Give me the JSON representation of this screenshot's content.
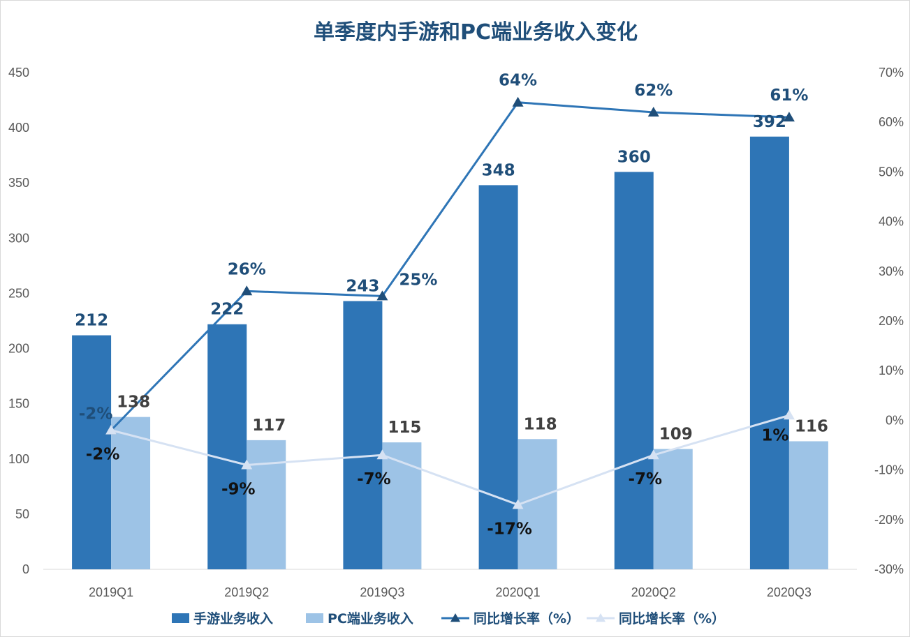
{
  "chart_data": {
    "type": "bar",
    "title": "单季度内手游和PC端业务收入变化",
    "categories": [
      "2019Q1",
      "2019Q2",
      "2019Q3",
      "2020Q1",
      "2020Q2",
      "2020Q3"
    ],
    "y_left": {
      "min": 0,
      "max": 450,
      "step": 50
    },
    "y_right": {
      "min": -30,
      "max": 70,
      "step": 10,
      "unit": "%"
    },
    "bar_series": [
      {
        "name": "手游业务收入",
        "color": "#2e75b6",
        "values": [
          212,
          222,
          243,
          348,
          360,
          392
        ]
      },
      {
        "name": "PC端业务收入",
        "color": "#9dc3e6",
        "values": [
          138,
          117,
          115,
          118,
          109,
          116
        ]
      }
    ],
    "line_series": [
      {
        "name": "同比增长率（%）",
        "color": "#2e75b6",
        "values": [
          -2,
          26,
          25,
          64,
          62,
          61
        ]
      },
      {
        "name": "同比增长率（%）",
        "color": "#d6e2f3",
        "values": [
          -2,
          -9,
          -7,
          -17,
          -7,
          1
        ]
      }
    ],
    "grid": false,
    "legend_position": "bottom"
  }
}
